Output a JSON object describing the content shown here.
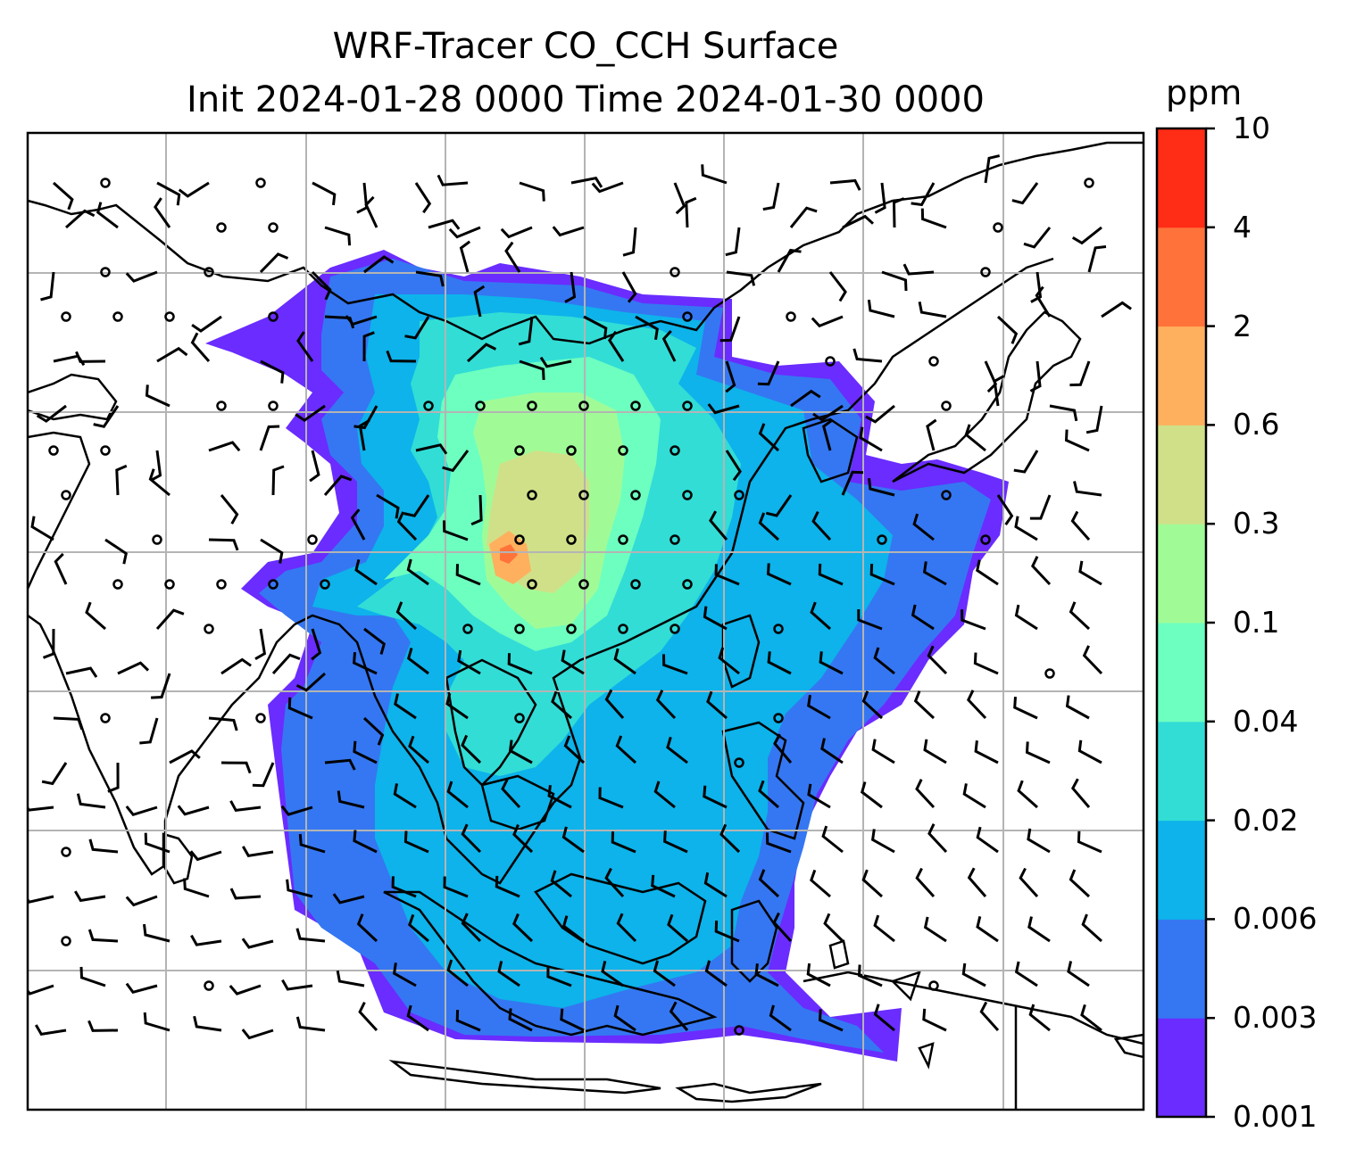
{
  "title": {
    "line1": "WRF-Tracer CO_CCH Surface",
    "line2": "Init 2024-01-28 0000 Time 2024-01-30 0000"
  },
  "colorbar": {
    "unit": "ppm",
    "levels": [
      "0.001",
      "0.003",
      "0.006",
      "0.02",
      "0.04",
      "0.1",
      "0.3",
      "0.6",
      "2",
      "4",
      "10"
    ],
    "colors": [
      "#6a2cff",
      "#3577f2",
      "#0db3ea",
      "#32ddd6",
      "#6dffc0",
      "#a0fb97",
      "#d0e088",
      "#ffb05e",
      "#ff733b",
      "#ff2c16"
    ]
  },
  "map": {
    "region": "Southeast Asia / East Asia",
    "gridlines": true,
    "wind_barbs": true,
    "coastlines": true
  }
}
